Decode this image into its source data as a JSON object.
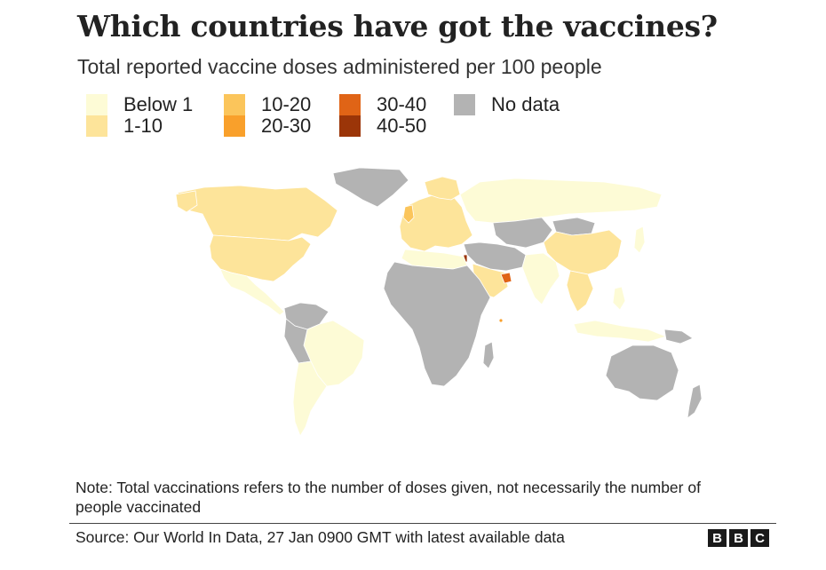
{
  "title": "Which countries have got the vaccines?",
  "subtitle": "Total reported vaccine doses administered per 100 people",
  "legend": [
    {
      "label": "Below 1",
      "color": "#fdfbd6"
    },
    {
      "label": "1-10",
      "color": "#fde49a"
    },
    {
      "label": "10-20",
      "color": "#fbc55b"
    },
    {
      "label": "20-30",
      "color": "#f9a02b"
    },
    {
      "label": "30-40",
      "color": "#e06416"
    },
    {
      "label": "40-50",
      "color": "#9b3508"
    },
    {
      "label": "No data",
      "color": "#b3b3b3"
    }
  ],
  "map_data": {
    "categories": {
      "below_1": [
        "Russia",
        "Mexico",
        "Brazil",
        "Argentina",
        "Chile",
        "Costa Rica",
        "India",
        "Indonesia",
        "Philippines",
        "Japan",
        "Kazakhstan",
        "Egypt",
        "Morocco",
        "Algeria"
      ],
      "1_10": [
        "Canada",
        "USA",
        "China",
        "Norway",
        "Sweden",
        "Finland",
        "Germany",
        "France",
        "Spain",
        "Italy",
        "Poland",
        "Turkey",
        "Saudi Arabia",
        "Malaysia",
        "Thailand"
      ],
      "10_20": [
        "United Kingdom",
        "Bahrain"
      ],
      "20_30": [
        "Seychelles"
      ],
      "30_40": [
        "United Arab Emirates"
      ],
      "40_50": [
        "Israel"
      ],
      "no_data": [
        "Greenland",
        "Australia",
        "New Zealand",
        "Sub-Saharan Africa",
        "Iran",
        "Peru",
        "Colombia",
        "Venezuela",
        "Mongolia",
        "Afghanistan",
        "Pakistan"
      ]
    }
  },
  "note": "Note: Total vaccinations refers to the number of doses given, not necessarily the number of people vaccinated",
  "source": "Source: Our World In Data, 27 Jan 0900 GMT with latest available data",
  "logo": [
    "B",
    "B",
    "C"
  ]
}
